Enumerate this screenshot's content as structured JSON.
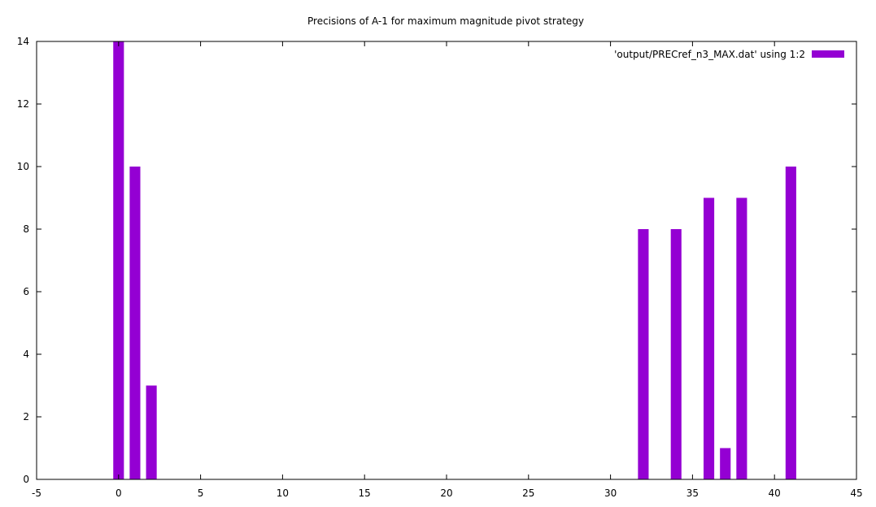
{
  "chart_data": {
    "type": "bar",
    "title": "Precisions of A-1 for maximum magnitude pivot strategy",
    "xlabel": "",
    "ylabel": "",
    "xlim": [
      -5,
      45
    ],
    "ylim": [
      0,
      14
    ],
    "xticks": [
      -5,
      0,
      5,
      10,
      15,
      20,
      25,
      30,
      35,
      40,
      45
    ],
    "yticks": [
      0,
      2,
      4,
      6,
      8,
      10,
      12,
      14
    ],
    "grid": false,
    "legend_position": "top-right",
    "bar_color": "#9400d3",
    "series": [
      {
        "name": "'output/PRECref_n3_MAX.dat' using 1:2",
        "x": [
          0,
          1,
          2,
          32,
          34,
          36,
          37,
          38,
          41
        ],
        "values": [
          14,
          10,
          3,
          8,
          8,
          9,
          1,
          9,
          10
        ]
      }
    ]
  }
}
